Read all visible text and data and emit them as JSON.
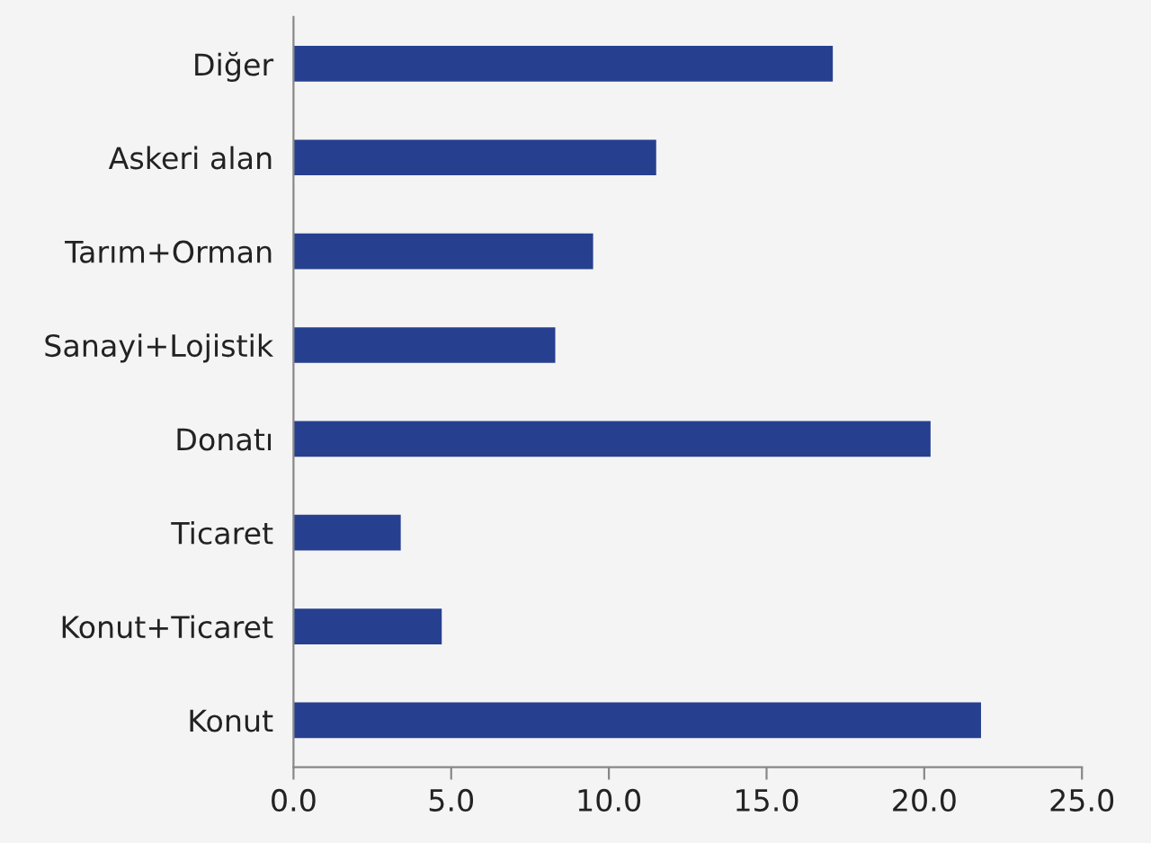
{
  "chart_data": {
    "type": "bar",
    "orientation": "horizontal",
    "categories": [
      "Diğer",
      "Askeri alan",
      "Tarım+Orman",
      "Sanayi+Lojistik",
      "Donatı",
      "Ticaret",
      "Konut+Ticaret",
      "Konut"
    ],
    "values": [
      17.1,
      11.5,
      9.5,
      8.3,
      20.2,
      3.4,
      4.7,
      21.8
    ],
    "color": "#263f8f",
    "xlim": [
      0,
      25
    ],
    "xticks": [
      {
        "value": 0,
        "label": "0.0"
      },
      {
        "value": 5,
        "label": "5.0"
      },
      {
        "value": 10,
        "label": "10.0"
      },
      {
        "value": 15,
        "label": "15.0"
      },
      {
        "value": 20,
        "label": "20.0"
      },
      {
        "value": 25,
        "label": "25.0"
      }
    ],
    "grid": false
  }
}
